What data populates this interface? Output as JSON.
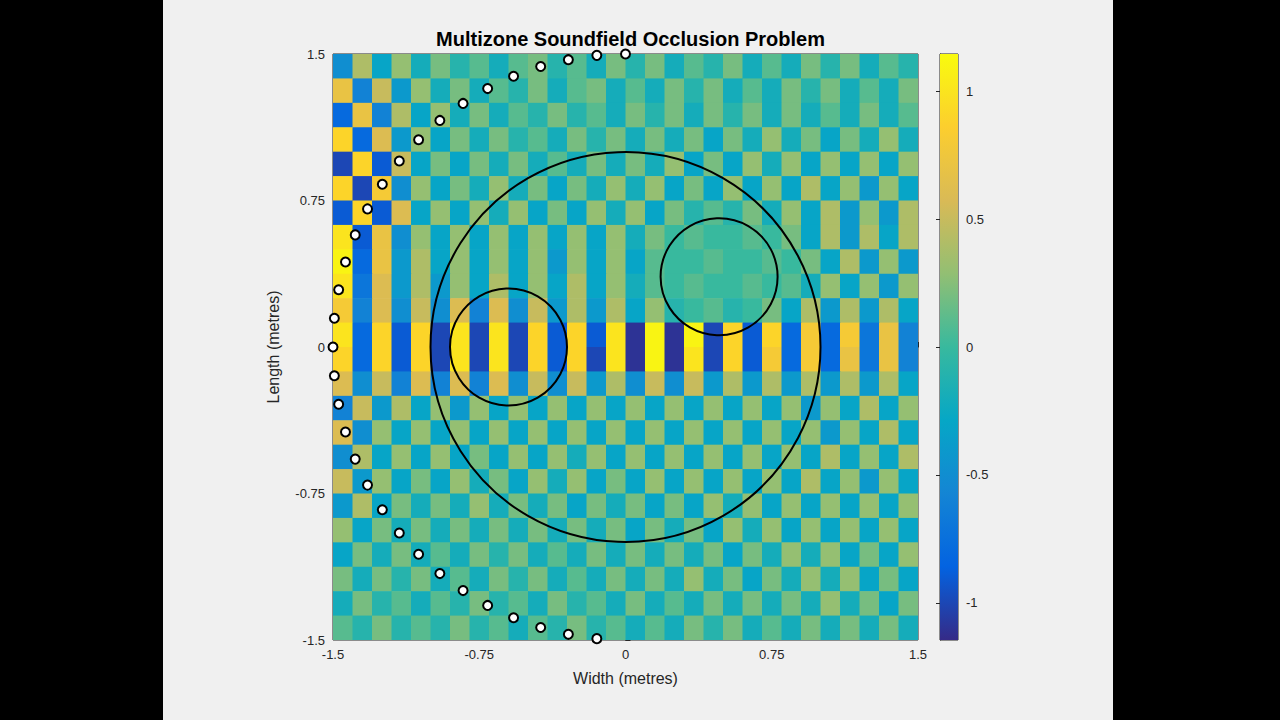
{
  "chart_data": {
    "type": "heatmap",
    "title": "Multizone Soundfield Occlusion Problem",
    "xlabel": "Width (metres)",
    "ylabel": "Length (metres)",
    "xlim": [
      -1.5,
      1.5
    ],
    "ylim": [
      -1.5,
      1.5
    ],
    "xticks": [
      -1.5,
      -0.75,
      0,
      0.75,
      1.5
    ],
    "yticks": [
      -1.5,
      -0.75,
      0,
      0.75,
      1.5
    ],
    "grid": false,
    "color_bar": {
      "range": [
        -1.145,
        1.145
      ],
      "ticks": [
        -1,
        -0.5,
        0,
        0.5,
        1
      ]
    },
    "zones": [
      {
        "center": [
          0,
          0
        ],
        "radius": 1
      },
      {
        "center": [
          -0.6,
          0
        ],
        "radius": 0.3
      },
      {
        "center": [
          0.48,
          0.36
        ],
        "radius": 0.3
      }
    ],
    "loudspeakers": {
      "x": [
        0,
        -0.147,
        -0.293,
        -0.435,
        -0.574,
        -0.707,
        -0.833,
        -0.952,
        -1.061,
        -1.16,
        -1.247,
        -1.323,
        -1.386,
        -1.436,
        -1.471,
        -1.493,
        -1.5,
        -1.493,
        -1.471,
        -1.436,
        -1.386,
        -1.323,
        -1.247,
        -1.16,
        -1.061,
        -0.952,
        -0.833,
        -0.707,
        -0.574,
        -0.435,
        -0.293,
        -0.147
      ],
      "y": [
        1.5,
        1.493,
        1.471,
        1.436,
        1.386,
        1.323,
        1.247,
        1.16,
        1.061,
        0.952,
        0.833,
        0.707,
        0.574,
        0.435,
        0.293,
        0.147,
        0,
        -0.147,
        -0.293,
        -0.435,
        -0.574,
        -0.707,
        -0.833,
        -0.952,
        -1.061,
        -1.16,
        -1.247,
        -1.323,
        -1.386,
        -1.436,
        -1.471,
        -1.493
      ]
    },
    "cells": {
      "x": [
        -1.45,
        -1.35,
        -1.25,
        -1.15,
        -1.05,
        -0.95,
        -0.85,
        -0.75,
        -0.65,
        -0.55,
        -0.45,
        -0.35,
        -0.25,
        -0.15,
        -0.05,
        0.05,
        0.15,
        0.25,
        0.35,
        0.45,
        0.55,
        0.65,
        0.75,
        0.85,
        0.95,
        1.05,
        1.15,
        1.25,
        1.35,
        1.45
      ],
      "y": [
        1.4375,
        1.3125,
        1.1875,
        1.0625,
        0.9375,
        0.8125,
        0.6875,
        0.5625,
        0.4375,
        0.3125,
        0.1875,
        0.0625,
        -0.0625,
        -0.1875,
        -0.3125,
        -0.4375,
        -0.5625,
        -0.6875,
        -0.8125,
        -0.9375,
        -1.0625,
        -1.1875,
        -1.3125,
        -1.4375
      ],
      "values": [
        [
          -0.5,
          0.4,
          -0.3,
          0.3,
          -0.2,
          0.2,
          -0.1,
          0.1,
          -0.2,
          0.1,
          0.2,
          -0.1,
          0.1,
          -0.2,
          0.2,
          -0.1,
          0.2,
          -0.2,
          0.1,
          -0.1,
          0.2,
          -0.2,
          0.1,
          -0.2,
          0.2,
          -0.1,
          0.2,
          -0.2,
          0.1,
          -0.1
        ],
        [
          0.7,
          -0.6,
          0.5,
          -0.4,
          0.3,
          -0.2,
          0.2,
          -0.2,
          0.1,
          -0.1,
          0.2,
          -0.2,
          0.1,
          0.2,
          -0.2,
          0.1,
          -0.2,
          0.2,
          -0.1,
          0.2,
          -0.2,
          0.1,
          -0.2,
          0.2,
          -0.1,
          0.2,
          -0.2,
          0.1,
          -0.2,
          0.2
        ],
        [
          -0.8,
          0.7,
          -0.6,
          0.4,
          -0.3,
          0.3,
          -0.2,
          0.2,
          -0.2,
          0.1,
          -0.1,
          0.2,
          -0.1,
          0.1,
          -0.2,
          0.2,
          -0.1,
          0.2,
          -0.2,
          0.2,
          -0.1,
          0.2,
          -0.2,
          0.2,
          -0.2,
          0.1,
          -0.2,
          0.2,
          -0.2,
          0.1
        ],
        [
          0.9,
          -0.8,
          0.6,
          -0.4,
          0.3,
          -0.3,
          0.2,
          -0.2,
          0.2,
          -0.1,
          0.1,
          -0.2,
          0.2,
          -0.1,
          0.2,
          -0.2,
          0.2,
          -0.2,
          0.2,
          -0.3,
          0.2,
          -0.2,
          0.3,
          -0.2,
          0.2,
          -0.3,
          0.2,
          -0.2,
          0.3,
          -0.2
        ],
        [
          -1.0,
          0.9,
          -0.9,
          0.5,
          -0.3,
          0.2,
          -0.3,
          0.2,
          -0.2,
          0.2,
          -0.2,
          0.1,
          -0.2,
          0.2,
          -0.2,
          0.2,
          -0.2,
          0.3,
          -0.3,
          0.2,
          -0.3,
          0.3,
          -0.2,
          0.3,
          -0.3,
          0.3,
          -0.3,
          0.3,
          -0.3,
          0.3
        ],
        [
          0.9,
          -1.0,
          0.8,
          -0.5,
          0.3,
          -0.3,
          0.2,
          -0.2,
          0.3,
          -0.2,
          0.2,
          -0.3,
          0.2,
          -0.2,
          0.3,
          -0.2,
          0.3,
          -0.3,
          0.2,
          -0.3,
          0.3,
          -0.3,
          0.3,
          -0.3,
          0.4,
          -0.3,
          0.3,
          -0.4,
          0.3,
          -0.3
        ],
        [
          -0.9,
          0.9,
          -0.9,
          0.6,
          -0.3,
          0.3,
          -0.3,
          0.3,
          -0.2,
          0.3,
          -0.3,
          0.2,
          -0.3,
          0.3,
          -0.2,
          0.3,
          -0.3,
          0.2,
          -0.1,
          0.1,
          -0.1,
          0.2,
          -0.2,
          0.3,
          -0.3,
          0.4,
          -0.4,
          0.3,
          -0.4,
          0.4
        ],
        [
          1.0,
          -0.9,
          0.7,
          -0.5,
          0.3,
          -0.3,
          0.3,
          -0.3,
          0.3,
          -0.3,
          0.3,
          -0.3,
          0.3,
          -0.3,
          0.3,
          -0.2,
          0.2,
          0.0,
          0.1,
          0.0,
          0.0,
          0.1,
          0.0,
          0.2,
          -0.3,
          0.4,
          -0.4,
          0.4,
          -0.3,
          0.4
        ],
        [
          1.1,
          -0.8,
          0.7,
          -0.4,
          0.4,
          -0.3,
          0.3,
          -0.3,
          0.3,
          -0.3,
          0.3,
          -0.4,
          0.3,
          -0.3,
          0.3,
          -0.3,
          0.1,
          0.0,
          0.0,
          0.1,
          0.0,
          0.0,
          0.1,
          0.0,
          0.2,
          -0.3,
          0.4,
          -0.4,
          0.3,
          -0.4
        ],
        [
          1.0,
          -0.7,
          0.6,
          -0.4,
          0.4,
          -0.4,
          0.3,
          -0.3,
          0.4,
          -0.3,
          0.3,
          -0.3,
          0.4,
          -0.3,
          0.3,
          -0.2,
          0.1,
          0.0,
          0.1,
          0.0,
          0.0,
          0.1,
          0.0,
          0.1,
          -0.2,
          0.3,
          -0.3,
          0.3,
          -0.4,
          0.3
        ],
        [
          0.8,
          -0.6,
          0.6,
          -0.5,
          0.5,
          -0.5,
          0.6,
          -0.6,
          0.6,
          -0.5,
          0.5,
          -0.4,
          0.4,
          -0.4,
          0.4,
          -0.3,
          0.3,
          -0.1,
          0.0,
          0.1,
          -0.1,
          0.0,
          0.2,
          -0.3,
          0.4,
          -0.4,
          0.4,
          -0.4,
          0.4,
          -0.3
        ],
        [
          1.0,
          -0.8,
          0.9,
          -0.9,
          0.9,
          -1.0,
          1.0,
          -1.0,
          1.0,
          -1.0,
          0.9,
          -0.9,
          0.9,
          -0.9,
          1.0,
          -1.1,
          1.1,
          -1.1,
          1.1,
          -1.0,
          0.9,
          -0.9,
          0.9,
          -0.8,
          0.8,
          -0.8,
          0.8,
          -0.7,
          0.7,
          -0.6
        ],
        [
          0.9,
          -0.8,
          0.9,
          -0.9,
          0.9,
          -1.0,
          1.0,
          -1.0,
          1.0,
          -1.0,
          0.9,
          -0.9,
          0.9,
          -1.0,
          1.0,
          -1.1,
          1.1,
          -1.1,
          1.0,
          -1.0,
          0.9,
          -0.9,
          0.8,
          -0.8,
          0.8,
          -0.8,
          0.7,
          -0.7,
          0.7,
          -0.6
        ],
        [
          0.6,
          -0.5,
          0.5,
          -0.6,
          0.6,
          -0.6,
          0.6,
          -0.6,
          0.6,
          -0.5,
          0.5,
          -0.5,
          0.5,
          -0.4,
          0.4,
          -0.5,
          0.5,
          -0.5,
          0.5,
          -0.4,
          0.4,
          -0.4,
          0.4,
          -0.4,
          0.4,
          -0.4,
          0.4,
          -0.4,
          0.4,
          -0.3
        ],
        [
          -0.6,
          0.5,
          -0.4,
          0.4,
          -0.3,
          0.3,
          -0.4,
          0.3,
          -0.3,
          0.3,
          -0.3,
          0.3,
          -0.3,
          0.3,
          -0.3,
          0.3,
          -0.3,
          0.3,
          -0.3,
          0.3,
          -0.3,
          0.3,
          -0.3,
          0.3,
          -0.4,
          0.3,
          -0.3,
          0.4,
          -0.3,
          0.3
        ],
        [
          0.6,
          -0.5,
          0.3,
          -0.3,
          0.3,
          -0.3,
          0.3,
          -0.3,
          0.3,
          -0.3,
          0.3,
          -0.3,
          0.3,
          -0.3,
          0.3,
          -0.3,
          0.3,
          -0.3,
          0.3,
          -0.3,
          0.3,
          -0.3,
          0.3,
          -0.3,
          0.3,
          -0.4,
          0.3,
          -0.3,
          0.4,
          -0.3
        ],
        [
          -0.5,
          0.4,
          -0.3,
          0.3,
          -0.3,
          0.3,
          -0.3,
          0.2,
          -0.3,
          0.3,
          -0.3,
          0.3,
          -0.2,
          0.3,
          -0.3,
          0.3,
          -0.3,
          0.3,
          -0.3,
          0.3,
          -0.3,
          0.3,
          -0.3,
          0.3,
          -0.3,
          0.4,
          -0.3,
          0.3,
          -0.3,
          0.4
        ],
        [
          0.5,
          -0.4,
          0.3,
          -0.3,
          0.2,
          -0.3,
          0.3,
          -0.2,
          0.2,
          -0.3,
          0.3,
          -0.2,
          0.3,
          -0.3,
          0.2,
          -0.3,
          0.3,
          -0.3,
          0.3,
          -0.3,
          0.3,
          -0.3,
          0.3,
          -0.3,
          0.4,
          -0.3,
          0.3,
          -0.4,
          0.3,
          -0.3
        ],
        [
          -0.4,
          0.4,
          -0.3,
          0.2,
          -0.2,
          0.2,
          -0.2,
          0.3,
          -0.2,
          0.2,
          -0.2,
          0.2,
          -0.3,
          0.2,
          -0.2,
          0.2,
          -0.3,
          0.2,
          -0.3,
          0.3,
          -0.2,
          0.3,
          -0.3,
          0.3,
          -0.3,
          0.3,
          -0.3,
          0.3,
          -0.3,
          0.3
        ],
        [
          0.3,
          -0.3,
          0.2,
          -0.2,
          0.2,
          -0.2,
          0.2,
          -0.2,
          0.2,
          -0.2,
          0.2,
          -0.2,
          0.2,
          -0.2,
          0.2,
          -0.3,
          0.2,
          -0.2,
          0.2,
          -0.3,
          0.3,
          -0.2,
          0.3,
          -0.3,
          0.3,
          -0.3,
          0.3,
          -0.3,
          0.3,
          -0.3
        ],
        [
          -0.3,
          0.2,
          -0.2,
          0.2,
          -0.2,
          0.1,
          -0.2,
          0.2,
          -0.1,
          0.2,
          -0.2,
          0.1,
          -0.2,
          0.2,
          -0.2,
          0.2,
          -0.2,
          0.2,
          -0.2,
          0.2,
          -0.3,
          0.2,
          -0.2,
          0.3,
          -0.2,
          0.3,
          -0.3,
          0.2,
          -0.3,
          0.3
        ],
        [
          0.2,
          -0.2,
          0.2,
          -0.1,
          0.2,
          -0.2,
          0.1,
          -0.2,
          0.2,
          -0.1,
          0.2,
          -0.2,
          0.1,
          -0.2,
          0.2,
          -0.2,
          0.2,
          -0.2,
          0.3,
          -0.2,
          0.2,
          -0.3,
          0.2,
          -0.2,
          0.3,
          -0.2,
          0.3,
          -0.3,
          0.2,
          -0.3
        ],
        [
          -0.2,
          0.2,
          -0.1,
          0.1,
          -0.2,
          0.1,
          -0.1,
          0.2,
          -0.1,
          0.1,
          -0.2,
          0.2,
          -0.1,
          0.1,
          -0.2,
          0.2,
          -0.2,
          0.1,
          -0.2,
          0.2,
          -0.2,
          0.2,
          -0.2,
          0.2,
          -0.2,
          0.3,
          -0.2,
          0.2,
          -0.3,
          0.2
        ],
        [
          0.1,
          -0.1,
          0.2,
          -0.1,
          0.1,
          -0.1,
          0.2,
          -0.1,
          0.1,
          -0.2,
          0.1,
          -0.1,
          0.2,
          -0.1,
          0.1,
          -0.2,
          0.1,
          -0.2,
          0.2,
          -0.1,
          0.2,
          -0.2,
          0.1,
          -0.2,
          0.2,
          -0.2,
          0.2,
          -0.2,
          0.2,
          -0.2
        ]
      ]
    }
  }
}
